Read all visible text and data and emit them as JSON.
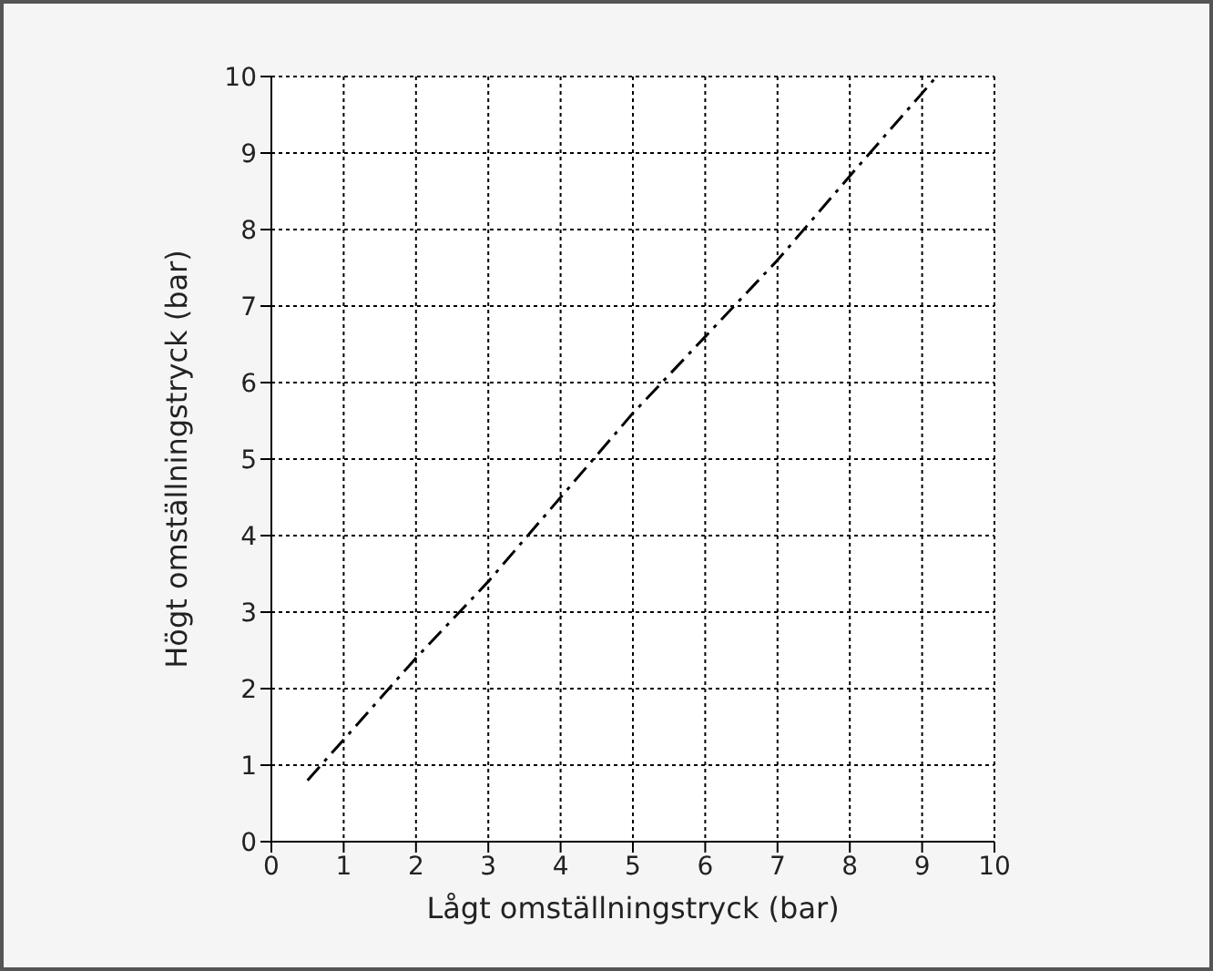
{
  "chart_data": {
    "type": "line",
    "xlabel": "Lågt omställningstryck (bar)",
    "ylabel": "Högt omställningstryck (bar)",
    "series": [
      {
        "color": "#000000",
        "x": [
          0.5,
          2,
          3,
          4,
          5,
          6,
          7,
          8,
          9.2
        ],
        "values": [
          0.8,
          2.4,
          3.4,
          4.5,
          5.6,
          6.6,
          7.6,
          8.7,
          10
        ]
      }
    ],
    "xlim": [
      0,
      10
    ],
    "ylim": [
      0,
      10
    ],
    "xticks": [
      0,
      1,
      2,
      3,
      4,
      5,
      6,
      7,
      8,
      9,
      10
    ],
    "yticks": [
      0,
      1,
      2,
      3,
      4,
      5,
      6,
      7,
      8,
      9,
      10
    ],
    "grid": true,
    "marker": "none",
    "line_style": "dashed"
  }
}
